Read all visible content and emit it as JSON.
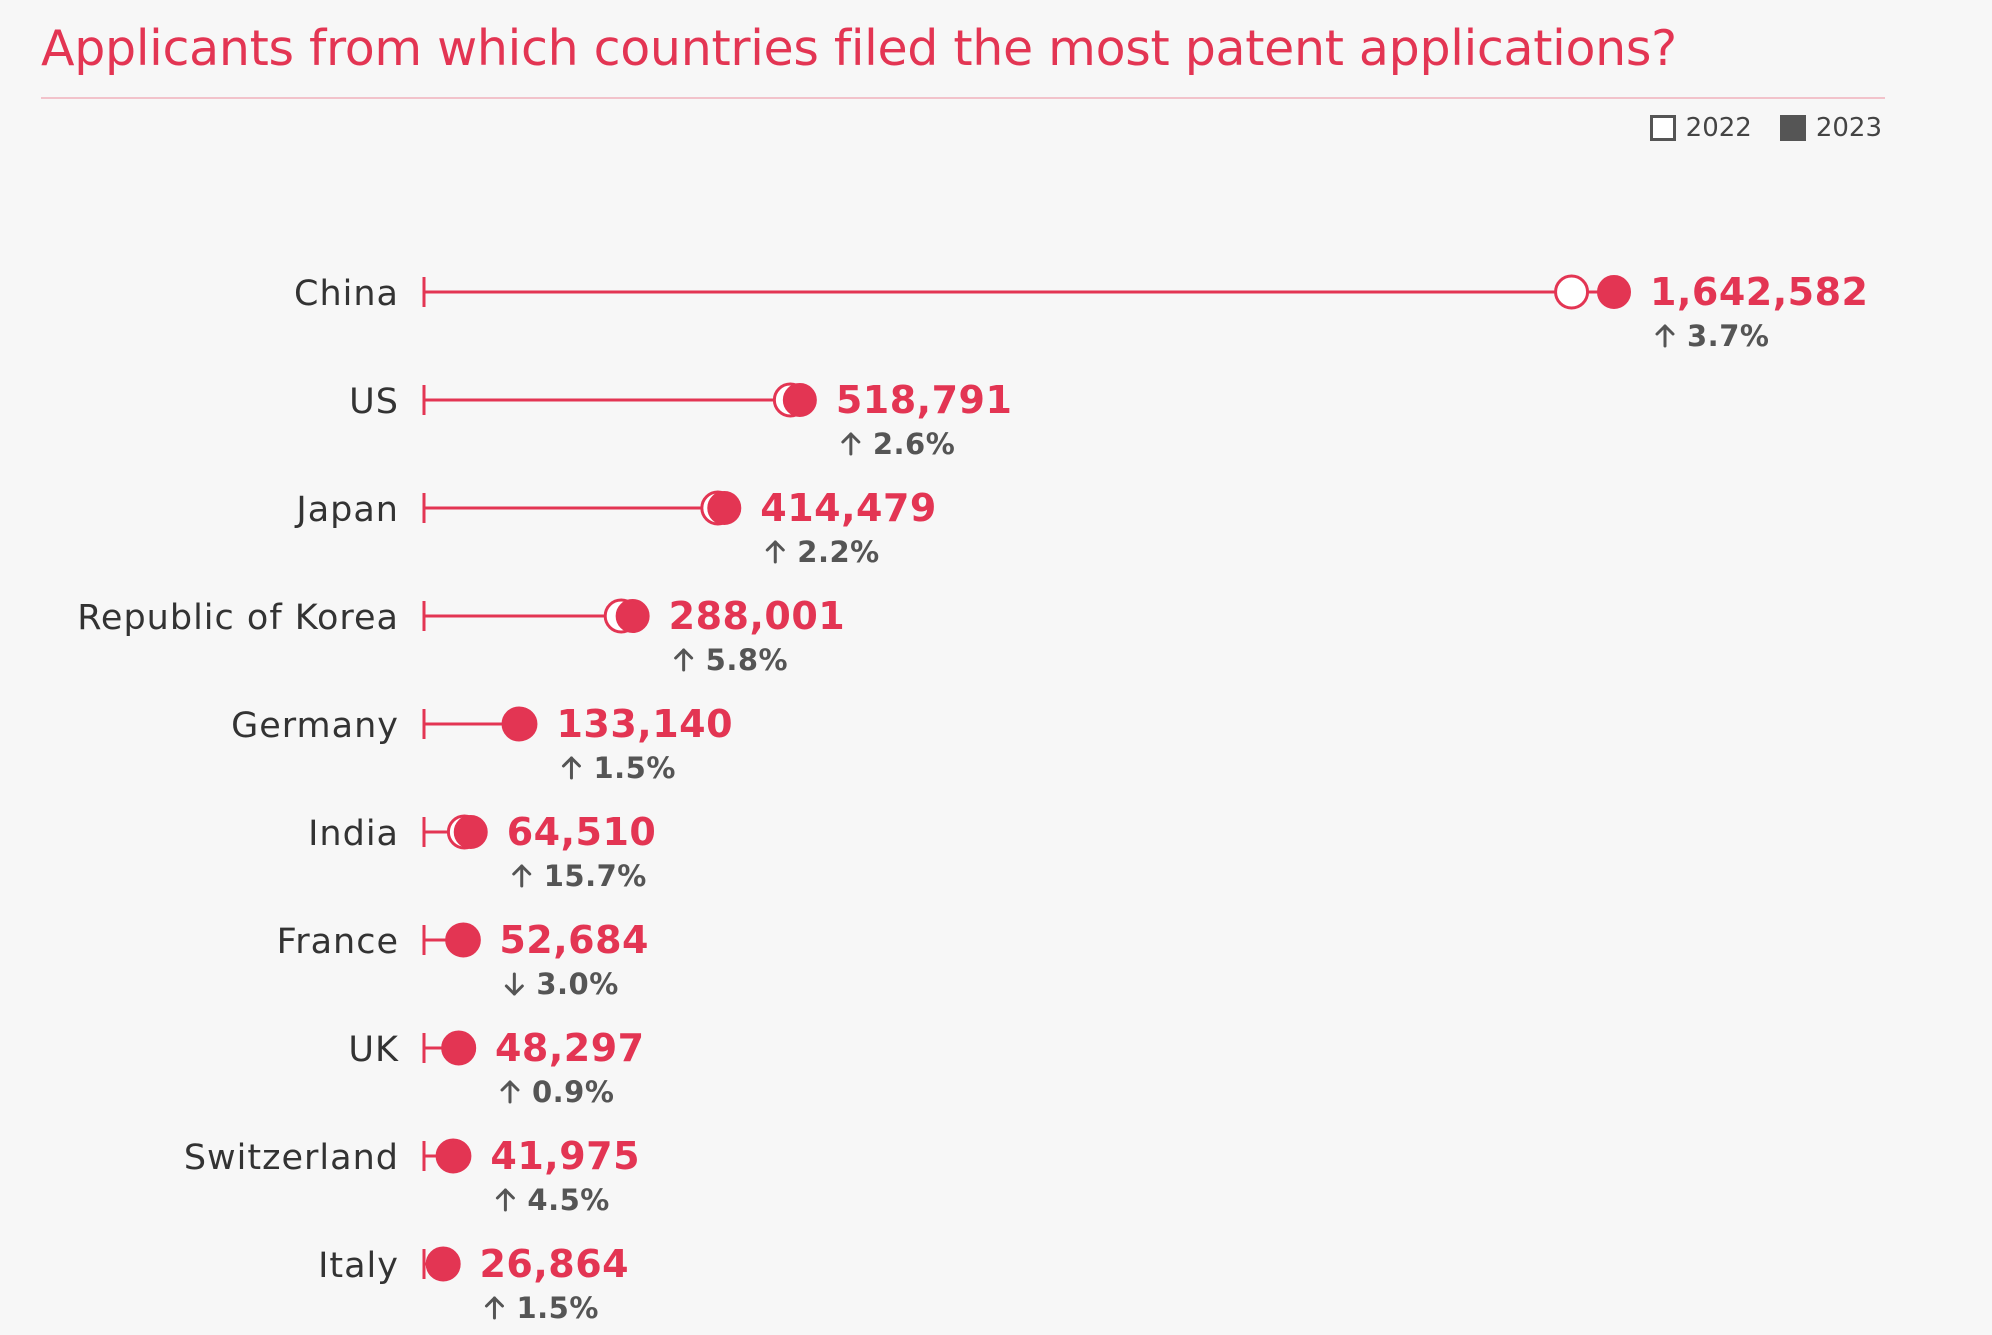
{
  "chart_data": {
    "type": "dumbbell",
    "title": "Applicants from which countries filed the most patent applications?",
    "legend": [
      {
        "name": "2022",
        "marker": "open-circle"
      },
      {
        "name": "2023",
        "marker": "filled-circle"
      }
    ],
    "legend_position": "top-right",
    "colors": {
      "accent": "#e33553",
      "text": "#333333",
      "muted": "#555555",
      "background": "#f7f7f7"
    },
    "categories": [
      "China",
      "US",
      "Japan",
      "Republic of Korea",
      "Germany",
      "India",
      "France",
      "UK",
      "Switzerland",
      "Italy"
    ],
    "series": [
      {
        "name": "2022",
        "values": [
          1584000,
          505700,
          405600,
          272200,
          131200,
          55760,
          54310,
          47870,
          40170,
          26470
        ]
      },
      {
        "name": "2023",
        "values": [
          1642582,
          518791,
          414479,
          288001,
          133140,
          64510,
          52684,
          48297,
          41975,
          26864
        ]
      }
    ],
    "value_labels": [
      "1,642,582",
      "518,791",
      "414,479",
      "288,001",
      "133,140",
      "64,510",
      "52,684",
      "48,297",
      "41,975",
      "26,864"
    ],
    "changes": [
      {
        "direction": "up",
        "text": "3.7%"
      },
      {
        "direction": "up",
        "text": "2.6%"
      },
      {
        "direction": "up",
        "text": "2.2%"
      },
      {
        "direction": "up",
        "text": "5.8%"
      },
      {
        "direction": "up",
        "text": "1.5%"
      },
      {
        "direction": "up",
        "text": "15.7%"
      },
      {
        "direction": "down",
        "text": "3.0%"
      },
      {
        "direction": "up",
        "text": "0.9%"
      },
      {
        "direction": "up",
        "text": "4.5%"
      },
      {
        "direction": "up",
        "text": "1.5%"
      }
    ],
    "xlim": [
      0,
      1642582
    ],
    "grid": false
  }
}
